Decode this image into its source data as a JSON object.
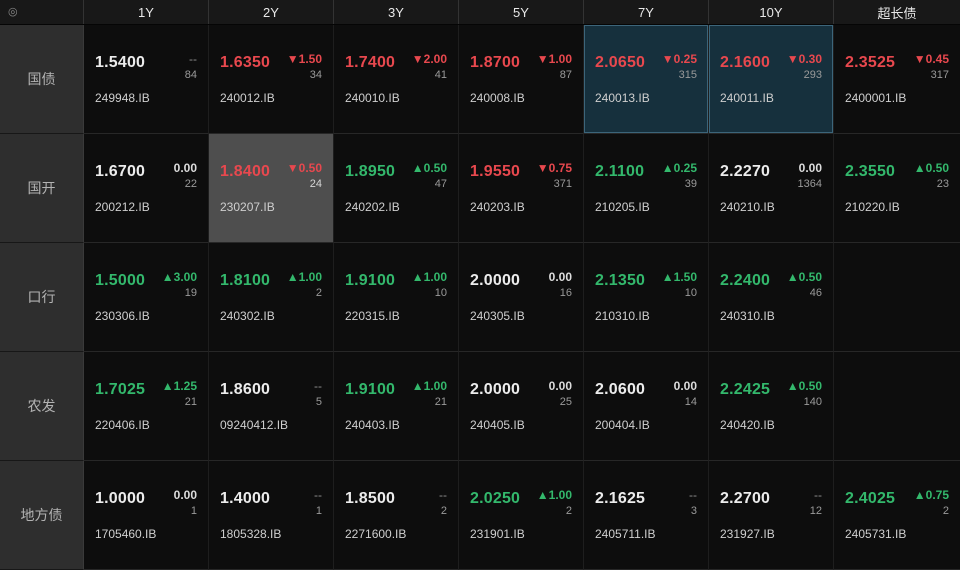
{
  "colors": {
    "up": "#33b86c",
    "down": "#e8484e",
    "highlight_bg": "#16303d",
    "selected_bg": "#4e4e4e"
  },
  "header": {
    "corner_icon_glyph": "◎",
    "columns": [
      "1Y",
      "2Y",
      "3Y",
      "5Y",
      "7Y",
      "10Y",
      "超长债"
    ]
  },
  "rows": [
    {
      "label": "国债",
      "cells": [
        {
          "value": "1.5400",
          "dir": "na",
          "change": "--",
          "volume": "84",
          "code": "249948.IB",
          "state": ""
        },
        {
          "value": "1.6350",
          "dir": "down",
          "change": "▼1.50",
          "volume": "34",
          "code": "240012.IB",
          "state": ""
        },
        {
          "value": "1.7400",
          "dir": "down",
          "change": "▼2.00",
          "volume": "41",
          "code": "240010.IB",
          "state": ""
        },
        {
          "value": "1.8700",
          "dir": "down",
          "change": "▼1.00",
          "volume": "87",
          "code": "240008.IB",
          "state": ""
        },
        {
          "value": "2.0650",
          "dir": "down",
          "change": "▼0.25",
          "volume": "315",
          "code": "240013.IB",
          "state": "highlight"
        },
        {
          "value": "2.1600",
          "dir": "down",
          "change": "▼0.30",
          "volume": "293",
          "code": "240011.IB",
          "state": "highlight"
        },
        {
          "value": "2.3525",
          "dir": "down",
          "change": "▼0.45",
          "volume": "317",
          "code": "2400001.IB",
          "state": ""
        }
      ]
    },
    {
      "label": "国开",
      "cells": [
        {
          "value": "1.6700",
          "dir": "flat",
          "change": "0.00",
          "volume": "22",
          "code": "200212.IB",
          "state": ""
        },
        {
          "value": "1.8400",
          "dir": "down",
          "change": "▼0.50",
          "volume": "24",
          "code": "230207.IB",
          "state": "selected"
        },
        {
          "value": "1.8950",
          "dir": "up",
          "change": "▲0.50",
          "volume": "47",
          "code": "240202.IB",
          "state": ""
        },
        {
          "value": "1.9550",
          "dir": "down",
          "change": "▼0.75",
          "volume": "371",
          "code": "240203.IB",
          "state": ""
        },
        {
          "value": "2.1100",
          "dir": "up",
          "change": "▲0.25",
          "volume": "39",
          "code": "210205.IB",
          "state": ""
        },
        {
          "value": "2.2270",
          "dir": "flat",
          "change": "0.00",
          "volume": "1364",
          "code": "240210.IB",
          "state": ""
        },
        {
          "value": "2.3550",
          "dir": "up",
          "change": "▲0.50",
          "volume": "23",
          "code": "210220.IB",
          "state": ""
        }
      ]
    },
    {
      "label": "口行",
      "cells": [
        {
          "value": "1.5000",
          "dir": "up",
          "change": "▲3.00",
          "volume": "19",
          "code": "230306.IB",
          "state": ""
        },
        {
          "value": "1.8100",
          "dir": "up",
          "change": "▲1.00",
          "volume": "2",
          "code": "240302.IB",
          "state": ""
        },
        {
          "value": "1.9100",
          "dir": "up",
          "change": "▲1.00",
          "volume": "10",
          "code": "220315.IB",
          "state": ""
        },
        {
          "value": "2.0000",
          "dir": "flat",
          "change": "0.00",
          "volume": "16",
          "code": "240305.IB",
          "state": ""
        },
        {
          "value": "2.1350",
          "dir": "up",
          "change": "▲1.50",
          "volume": "10",
          "code": "210310.IB",
          "state": ""
        },
        {
          "value": "2.2400",
          "dir": "up",
          "change": "▲0.50",
          "volume": "46",
          "code": "240310.IB",
          "state": ""
        },
        {
          "value": "",
          "dir": "na",
          "change": "",
          "volume": "",
          "code": "",
          "state": ""
        }
      ]
    },
    {
      "label": "农发",
      "cells": [
        {
          "value": "1.7025",
          "dir": "up",
          "change": "▲1.25",
          "volume": "21",
          "code": "220406.IB",
          "state": ""
        },
        {
          "value": "1.8600",
          "dir": "na",
          "change": "--",
          "volume": "5",
          "code": "09240412.IB",
          "state": ""
        },
        {
          "value": "1.9100",
          "dir": "up",
          "change": "▲1.00",
          "volume": "21",
          "code": "240403.IB",
          "state": ""
        },
        {
          "value": "2.0000",
          "dir": "flat",
          "change": "0.00",
          "volume": "25",
          "code": "240405.IB",
          "state": ""
        },
        {
          "value": "2.0600",
          "dir": "flat",
          "change": "0.00",
          "volume": "14",
          "code": "200404.IB",
          "state": ""
        },
        {
          "value": "2.2425",
          "dir": "up",
          "change": "▲0.50",
          "volume": "140",
          "code": "240420.IB",
          "state": ""
        },
        {
          "value": "",
          "dir": "na",
          "change": "",
          "volume": "",
          "code": "",
          "state": ""
        }
      ]
    },
    {
      "label": "地方债",
      "cells": [
        {
          "value": "1.0000",
          "dir": "flat",
          "change": "0.00",
          "volume": "1",
          "code": "1705460.IB",
          "state": ""
        },
        {
          "value": "1.4000",
          "dir": "na",
          "change": "--",
          "volume": "1",
          "code": "1805328.IB",
          "state": ""
        },
        {
          "value": "1.8500",
          "dir": "na",
          "change": "--",
          "volume": "2",
          "code": "2271600.IB",
          "state": ""
        },
        {
          "value": "2.0250",
          "dir": "up",
          "change": "▲1.00",
          "volume": "2",
          "code": "231901.IB",
          "state": ""
        },
        {
          "value": "2.1625",
          "dir": "na",
          "change": "--",
          "volume": "3",
          "code": "2405711.IB",
          "state": ""
        },
        {
          "value": "2.2700",
          "dir": "na",
          "change": "--",
          "volume": "12",
          "code": "231927.IB",
          "state": ""
        },
        {
          "value": "2.4025",
          "dir": "up",
          "change": "▲0.75",
          "volume": "2",
          "code": "2405731.IB",
          "state": ""
        }
      ]
    }
  ]
}
